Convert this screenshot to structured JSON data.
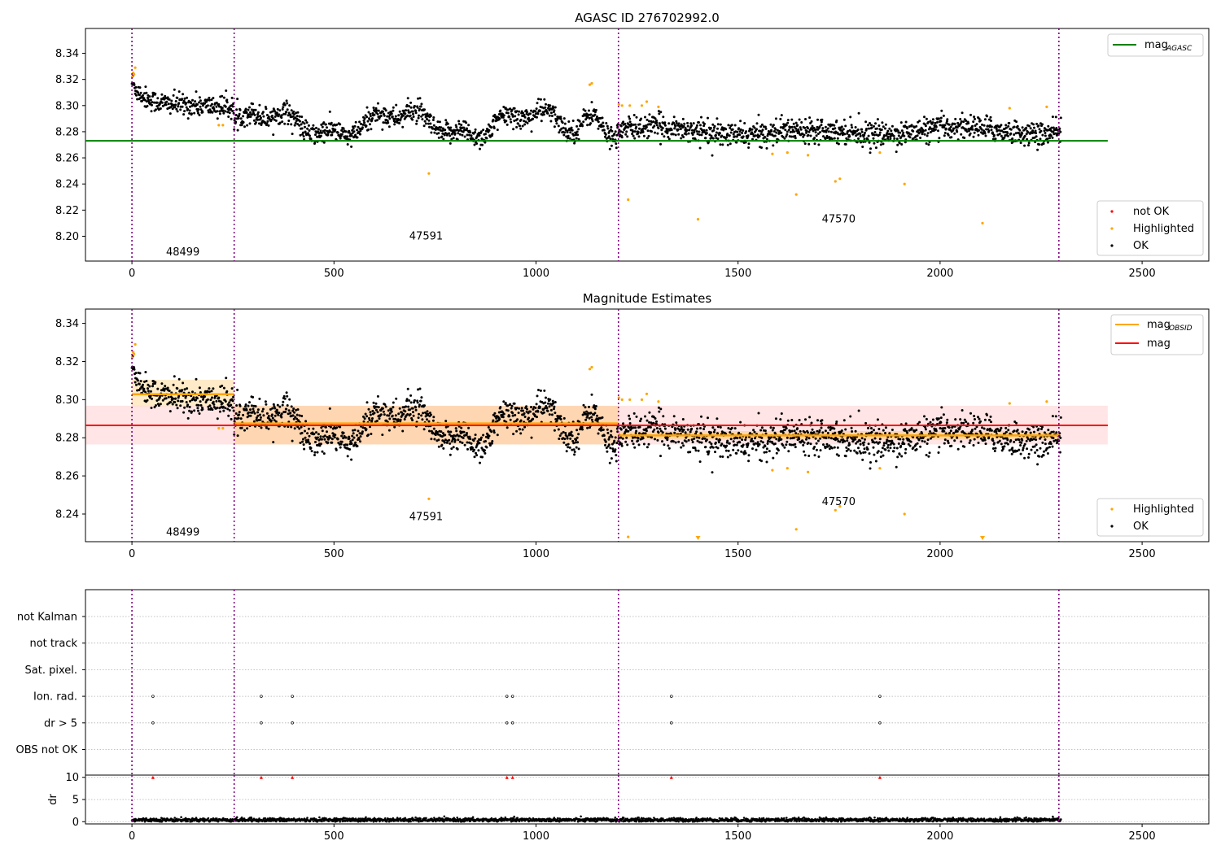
{
  "chart_data": [
    {
      "type": "scatter",
      "title": "AGASC ID 276702992.0",
      "xlabel": "",
      "ylabel": "",
      "xlim": [
        -115,
        2665
      ],
      "ylim": [
        8.181,
        8.359
      ],
      "xticks": [
        0,
        500,
        1000,
        1500,
        2000,
        2500
      ],
      "yticks": [
        8.2,
        8.22,
        8.24,
        8.26,
        8.28,
        8.3,
        8.32,
        8.34
      ],
      "grid": false,
      "legend": [
        {
          "placement": "upper right",
          "entries": [
            {
              "label": "mag",
              "subscript": "AGASC",
              "color": "#008000",
              "kind": "line"
            }
          ]
        },
        {
          "placement": "lower right",
          "entries": [
            {
              "label": "not OK",
              "color": "#ff0000",
              "kind": "point"
            },
            {
              "label": "Highlighted",
              "color": "#ffa500",
              "kind": "point"
            },
            {
              "label": "OK",
              "color": "#000000",
              "kind": "point"
            }
          ]
        }
      ],
      "mag_agasc": 8.273,
      "obsid_boundaries": [
        0,
        253,
        1204,
        2294
      ],
      "obsids": [
        {
          "label": "48499",
          "x_center": 126,
          "y": 8.188
        },
        {
          "label": "47591",
          "x_center": 728,
          "y": 8.2
        },
        {
          "label": "47570",
          "x_center": 1749,
          "y": 8.213
        }
      ],
      "segment_levels": [
        {
          "x": [
            0,
            253
          ],
          "level": 8.303,
          "amplitude": 0.005
        },
        {
          "x": [
            253,
            1204
          ],
          "level": 8.287,
          "amplitude": 0.009
        },
        {
          "x": [
            1204,
            2294
          ],
          "level": 8.281,
          "amplitude": 0.004
        }
      ],
      "highlighted_points": [
        [
          1,
          8.322
        ],
        [
          3,
          8.325
        ],
        [
          5,
          8.324
        ],
        [
          8,
          8.329
        ],
        [
          215,
          8.285
        ],
        [
          225,
          8.285
        ],
        [
          735,
          8.248
        ],
        [
          1133,
          8.316
        ],
        [
          1138,
          8.317
        ],
        [
          1205,
          8.301
        ],
        [
          1213,
          8.3
        ],
        [
          1228,
          8.228
        ],
        [
          1232,
          8.3
        ],
        [
          1262,
          8.3
        ],
        [
          1274,
          8.303
        ],
        [
          1303,
          8.299
        ],
        [
          1401,
          8.213
        ],
        [
          1585,
          8.263
        ],
        [
          1622,
          8.264
        ],
        [
          1644,
          8.232
        ],
        [
          1673,
          8.262
        ],
        [
          1741,
          8.242
        ],
        [
          1752,
          8.244
        ],
        [
          1851,
          8.264
        ],
        [
          1912,
          8.24
        ],
        [
          2105,
          8.21
        ],
        [
          2172,
          8.298
        ],
        [
          2264,
          8.299
        ]
      ]
    },
    {
      "type": "scatter",
      "title": "Magnitude Estimates",
      "xlabel": "",
      "ylabel": "",
      "xlim": [
        -115,
        2665
      ],
      "ylim": [
        8.2255,
        8.3475
      ],
      "xticks": [
        0,
        500,
        1000,
        1500,
        2000,
        2500
      ],
      "yticks": [
        8.24,
        8.26,
        8.28,
        8.3,
        8.32,
        8.34
      ],
      "grid": false,
      "legend": [
        {
          "placement": "upper right",
          "entries": [
            {
              "label": "mag",
              "subscript": "OBSID",
              "color": "#ffa500",
              "kind": "line"
            },
            {
              "label": "mag",
              "color": "#ff0000",
              "kind": "line"
            }
          ]
        },
        {
          "placement": "lower right",
          "entries": [
            {
              "label": "Highlighted",
              "color": "#ffa500",
              "kind": "point"
            },
            {
              "label": "OK",
              "color": "#000000",
              "kind": "point"
            }
          ]
        }
      ],
      "mag": 8.2865,
      "mag_band": [
        8.2765,
        8.2968
      ],
      "mag_obsid": [
        {
          "x": [
            0,
            253
          ],
          "value": 8.3028,
          "band": [
            8.2966,
            8.3104
          ]
        },
        {
          "x": [
            253,
            1204
          ],
          "value": 8.2875,
          "band": [
            8.2765,
            8.2967
          ]
        },
        {
          "x": [
            1204,
            2294
          ],
          "value": 8.2812,
          "band": [
            8.279,
            8.2835
          ]
        }
      ],
      "obsids": [
        {
          "label": "48499",
          "x_center": 126,
          "y": 8.2305
        },
        {
          "label": "47591",
          "x_center": 728,
          "y": 8.2385
        },
        {
          "label": "47570",
          "x_center": 1749,
          "y": 8.2465
        }
      ],
      "highlighted_points": [
        [
          1,
          8.322
        ],
        [
          3,
          8.325
        ],
        [
          5,
          8.324
        ],
        [
          8,
          8.329
        ],
        [
          215,
          8.285
        ],
        [
          225,
          8.285
        ],
        [
          735,
          8.248
        ],
        [
          1133,
          8.316
        ],
        [
          1138,
          8.317
        ],
        [
          1205,
          8.301
        ],
        [
          1213,
          8.3
        ],
        [
          1228,
          8.228
        ],
        [
          1232,
          8.3
        ],
        [
          1262,
          8.3
        ],
        [
          1274,
          8.303
        ],
        [
          1303,
          8.299
        ],
        [
          1585,
          8.263
        ],
        [
          1622,
          8.264
        ],
        [
          1644,
          8.232
        ],
        [
          1673,
          8.262
        ],
        [
          1741,
          8.242
        ],
        [
          1752,
          8.244
        ],
        [
          1851,
          8.264
        ],
        [
          1912,
          8.24
        ],
        [
          2172,
          8.298
        ],
        [
          2264,
          8.299
        ]
      ],
      "offscale_markers": [
        1401,
        2105
      ]
    },
    {
      "type": "scatter",
      "title": "",
      "xlabel": "",
      "ylabel": "",
      "xlim": [
        -115,
        2665
      ],
      "xticks": [
        0,
        500,
        1000,
        1500,
        2000,
        2500
      ],
      "flag_rows": [
        "not Kalman",
        "not track",
        "Sat. pixel.",
        "Ion. rad.",
        "dr > 5",
        "OBS not OK"
      ],
      "flag_events": {
        "Ion. rad.": [
          52,
          320,
          397,
          928,
          942,
          1335,
          1851
        ],
        "dr > 5": [
          52,
          320,
          397,
          928,
          942,
          1335,
          1851
        ]
      },
      "grid": "horizontal dotted"
    },
    {
      "type": "scatter",
      "title": "",
      "xlabel": "",
      "ylabel": "dr",
      "xlim": [
        -115,
        2665
      ],
      "ylim": [
        -0.5,
        10.5
      ],
      "xticks": [
        0,
        500,
        1000,
        1500,
        2000,
        2500
      ],
      "yticks": [
        0,
        5,
        10
      ],
      "grid": "horizontal dotted",
      "dr_typical": 0.4,
      "clipped_marker_value": 10,
      "clipped_markers_x": [
        52,
        320,
        397,
        928,
        942,
        1335,
        1851
      ]
    }
  ]
}
